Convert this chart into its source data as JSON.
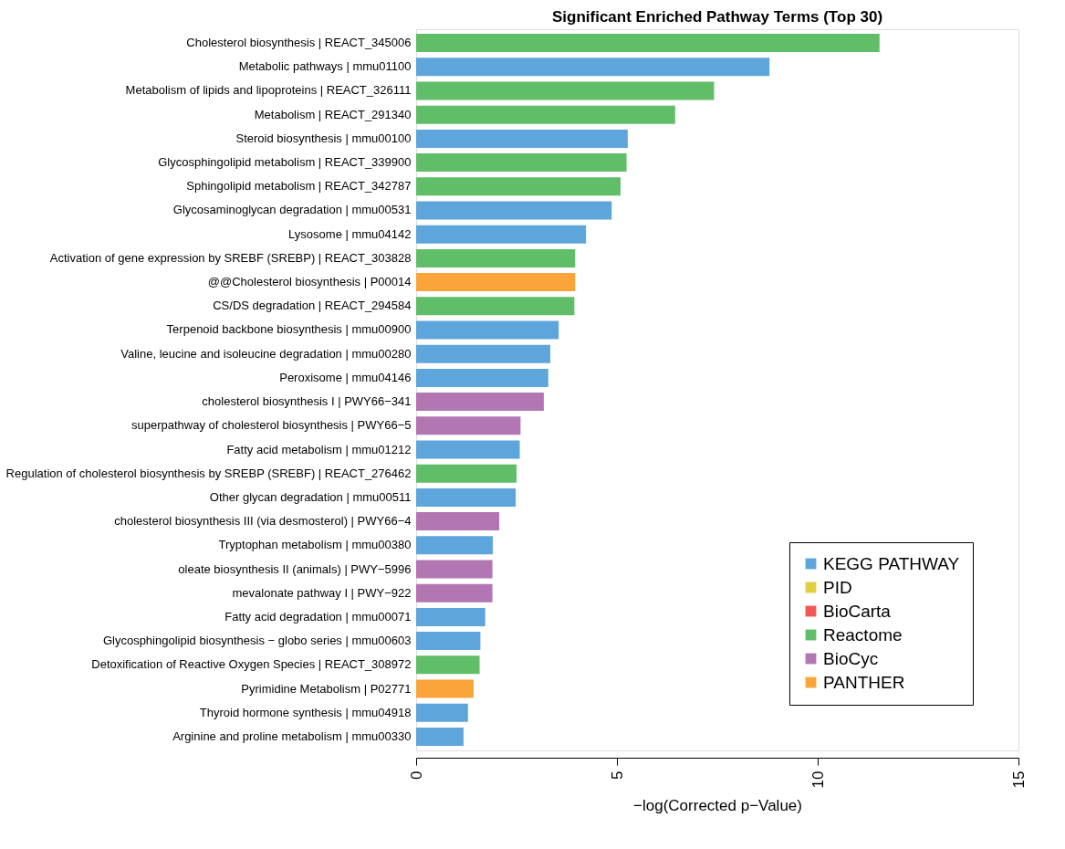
{
  "chart_data": {
    "type": "bar",
    "orientation": "horizontal",
    "title": "Significant Enriched Pathway Terms (Top 30)",
    "xlabel": "−log(Corrected p−Value)",
    "categories": [
      "Cholesterol biosynthesis | REACT_345006",
      "Metabolic pathways | mmu01100",
      "Metabolism of lipids and lipoproteins | REACT_326111",
      "Metabolism | REACT_291340",
      "Steroid biosynthesis | mmu00100",
      "Glycosphingolipid metabolism | REACT_339900",
      "Sphingolipid metabolism | REACT_342787",
      "Glycosaminoglycan degradation | mmu00531",
      "Lysosome | mmu04142",
      "Activation of gene expression by SREBF (SREBP) | REACT_303828",
      "@@Cholesterol biosynthesis | P00014",
      "CS/DS degradation | REACT_294584",
      "Terpenoid backbone biosynthesis | mmu00900",
      "Valine, leucine and isoleucine degradation | mmu00280",
      "Peroxisome | mmu04146",
      "cholesterol biosynthesis I | PWY66−341",
      "superpathway of cholesterol biosynthesis | PWY66−5",
      "Fatty acid metabolism | mmu01212",
      "Regulation of cholesterol biosynthesis by SREBP (SREBF) | REACT_276462",
      "Other glycan degradation | mmu00511",
      "cholesterol biosynthesis III (via desmosterol) | PWY66−4",
      "Tryptophan metabolism | mmu00380",
      "oleate biosynthesis II (animals) | PWY−5996",
      "mevalonate pathway I | PWY−922",
      "Fatty acid degradation | mmu00071",
      "Glycosphingolipid biosynthesis − globo series | mmu00603",
      "Detoxification of Reactive Oxygen Species | REACT_308972",
      "Pyrimidine Metabolism | P02771",
      "Thyroid hormone synthesis | mmu04918",
      "Arginine and proline metabolism | mmu00330"
    ],
    "series": [
      {
        "name": "KEGG PATHWAY",
        "color": "#5da5da",
        "values": [
          null,
          8.8,
          null,
          null,
          5.27,
          null,
          null,
          4.87,
          4.23,
          null,
          null,
          null,
          3.55,
          3.34,
          3.29,
          null,
          null,
          2.58,
          null,
          2.48,
          null,
          1.91,
          null,
          null,
          1.72,
          1.6,
          null,
          null,
          1.29,
          1.18
        ]
      },
      {
        "name": "PID",
        "color": "#decf3f",
        "values": [
          null,
          null,
          null,
          null,
          null,
          null,
          null,
          null,
          null,
          null,
          null,
          null,
          null,
          null,
          null,
          null,
          null,
          null,
          null,
          null,
          null,
          null,
          null,
          null,
          null,
          null,
          null,
          null,
          null,
          null
        ]
      },
      {
        "name": "BioCarta",
        "color": "#f15854",
        "values": [
          null,
          null,
          null,
          null,
          null,
          null,
          null,
          null,
          null,
          null,
          null,
          null,
          null,
          null,
          null,
          null,
          null,
          null,
          null,
          null,
          null,
          null,
          null,
          null,
          null,
          null,
          null,
          null,
          null,
          null
        ]
      },
      {
        "name": "Reactome",
        "color": "#60bd68",
        "values": [
          11.54,
          null,
          7.42,
          6.45,
          null,
          5.24,
          5.09,
          null,
          null,
          3.96,
          null,
          3.94,
          null,
          null,
          null,
          null,
          null,
          null,
          2.5,
          null,
          null,
          null,
          null,
          null,
          null,
          null,
          1.58,
          null,
          null,
          null
        ]
      },
      {
        "name": "BioCyc",
        "color": "#b276b2",
        "values": [
          null,
          null,
          null,
          null,
          null,
          null,
          null,
          null,
          null,
          null,
          null,
          null,
          null,
          null,
          null,
          3.18,
          2.6,
          null,
          null,
          null,
          2.07,
          null,
          1.9,
          1.9,
          null,
          null,
          null,
          null,
          null,
          null
        ]
      },
      {
        "name": "PANTHER",
        "color": "#faa43a",
        "values": [
          null,
          null,
          null,
          null,
          null,
          null,
          null,
          null,
          null,
          null,
          3.96,
          null,
          null,
          null,
          null,
          null,
          null,
          null,
          null,
          null,
          null,
          null,
          null,
          null,
          null,
          null,
          null,
          1.43,
          null,
          null
        ]
      }
    ],
    "xlim": [
      0,
      15
    ],
    "xticks": [
      0,
      5,
      10,
      15
    ],
    "grid": false,
    "legend": "bottom right"
  }
}
